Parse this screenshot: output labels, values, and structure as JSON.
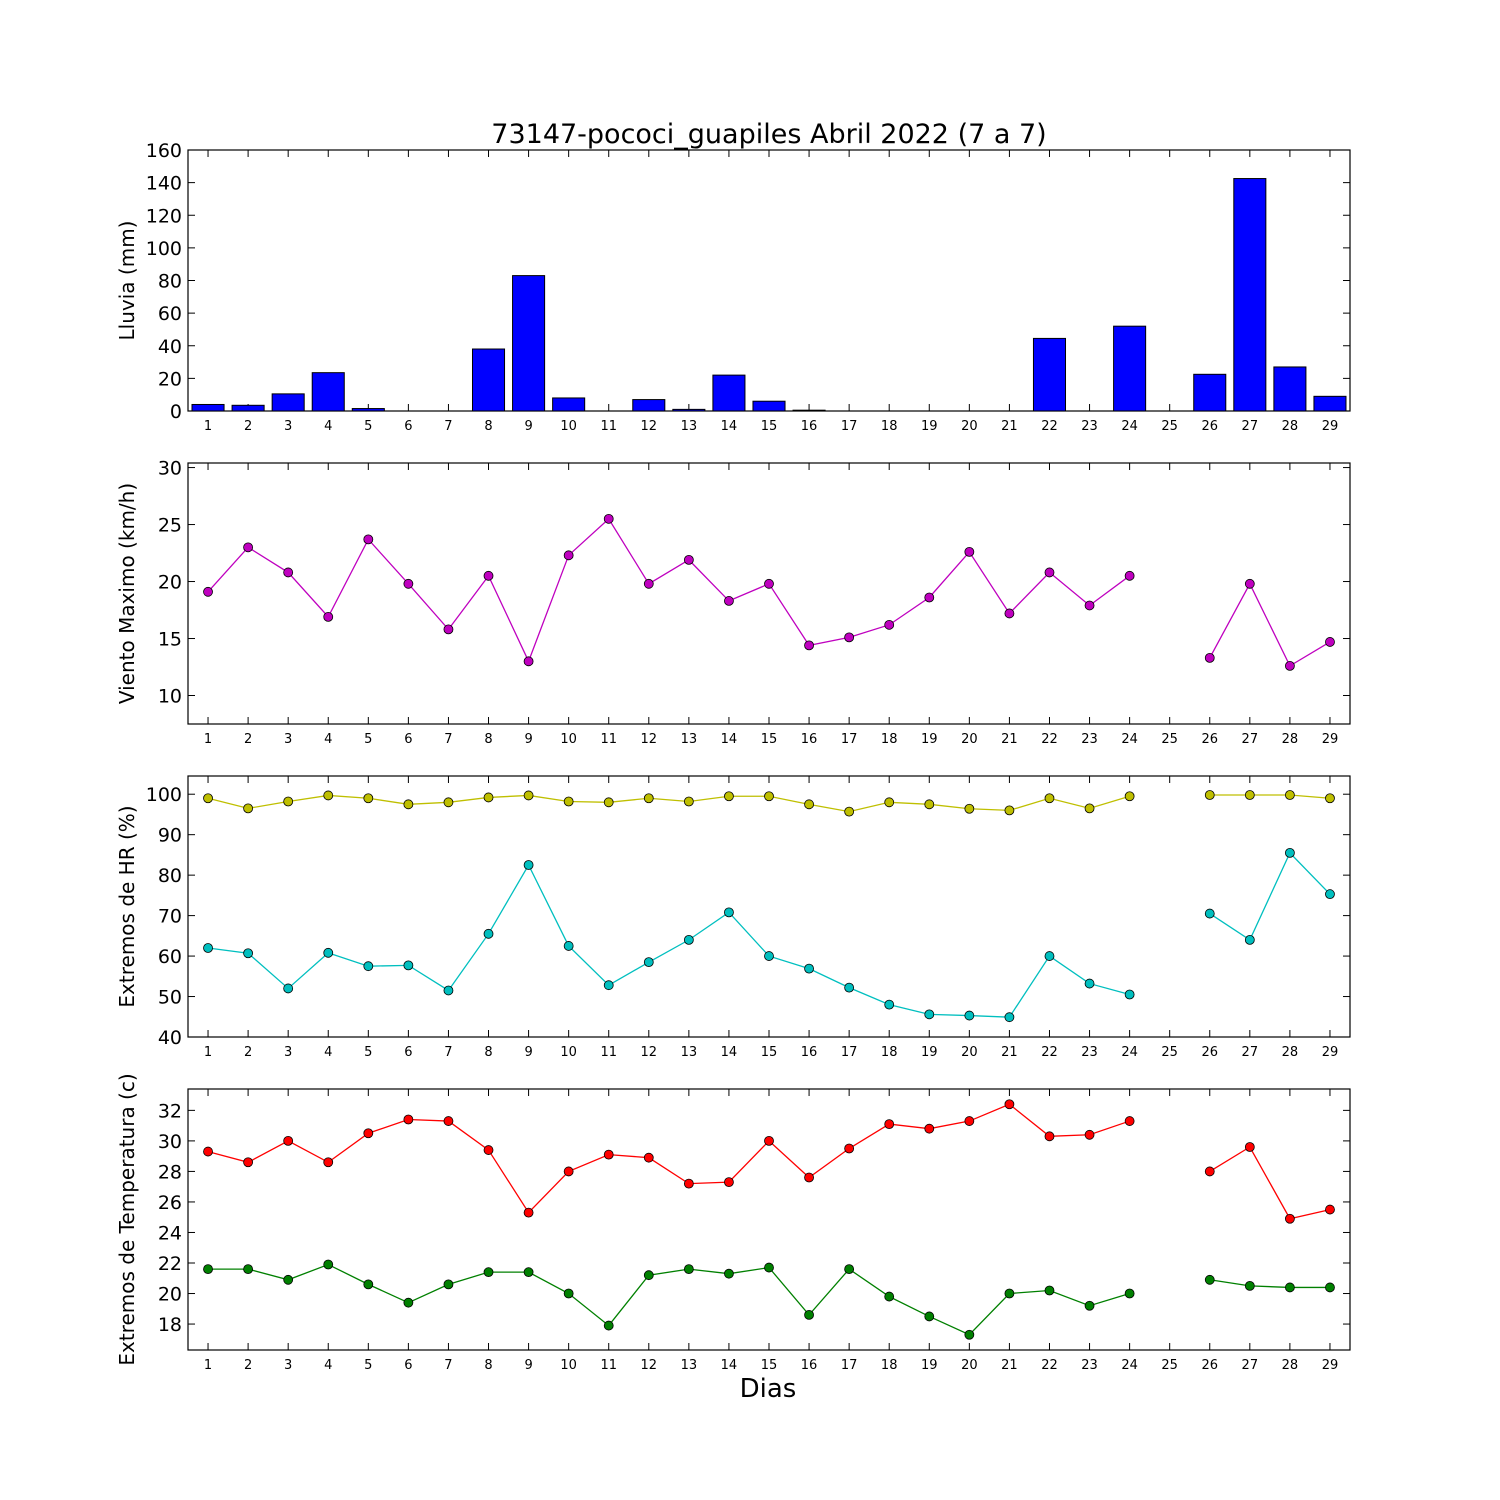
{
  "figure": {
    "title": "73147-pococi_guapiles Abril 2022  (7 a 7)",
    "xlabel": "Dias"
  },
  "chart_data": [
    {
      "type": "bar",
      "ylabel": "Lluvia (mm)",
      "categories": [
        "1",
        "2",
        "3",
        "4",
        "5",
        "6",
        "7",
        "8",
        "9",
        "10",
        "11",
        "12",
        "13",
        "14",
        "15",
        "16",
        "17",
        "18",
        "19",
        "20",
        "21",
        "22",
        "23",
        "24",
        "25",
        "26",
        "27",
        "28",
        "29"
      ],
      "x": [
        1,
        2,
        3,
        4,
        5,
        6,
        7,
        8,
        9,
        10,
        11,
        12,
        13,
        14,
        15,
        16,
        17,
        18,
        19,
        20,
        21,
        22,
        23,
        24,
        25,
        26,
        27,
        28,
        29
      ],
      "ylim": [
        0,
        160
      ],
      "yticks": [
        0,
        20,
        40,
        60,
        80,
        100,
        120,
        140,
        160
      ],
      "series": [
        {
          "color": "#0000ff",
          "values": [
            4,
            3.5,
            10.5,
            23.5,
            1.5,
            0,
            0,
            38,
            83,
            8,
            0,
            7,
            1,
            22,
            6,
            0.5,
            0,
            0,
            0,
            0,
            0,
            44.5,
            0,
            52,
            0,
            22.5,
            142.5,
            27,
            9
          ]
        }
      ],
      "grid": false
    },
    {
      "type": "line",
      "ylabel": "Viento Maximo (km/h)",
      "x": [
        1,
        2,
        3,
        4,
        5,
        6,
        7,
        8,
        9,
        10,
        11,
        12,
        13,
        14,
        15,
        16,
        17,
        18,
        19,
        20,
        21,
        22,
        23,
        24,
        25,
        26,
        27,
        28,
        29
      ],
      "ylim": [
        7.5,
        30.4
      ],
      "yticks": [
        10,
        15,
        20,
        25,
        30
      ],
      "series": [
        {
          "color": "#bf00bf",
          "values": [
            19.1,
            23.0,
            20.8,
            16.9,
            23.7,
            19.8,
            15.8,
            20.5,
            13.0,
            22.3,
            25.5,
            19.8,
            21.9,
            18.3,
            19.8,
            14.4,
            15.1,
            16.2,
            18.6,
            22.6,
            17.2,
            20.8,
            17.9,
            20.5,
            null,
            13.3,
            19.8,
            12.6,
            14.7
          ]
        }
      ],
      "grid": false
    },
    {
      "type": "line",
      "ylabel": "Extremos de HR (%)",
      "x": [
        1,
        2,
        3,
        4,
        5,
        6,
        7,
        8,
        9,
        10,
        11,
        12,
        13,
        14,
        15,
        16,
        17,
        18,
        19,
        20,
        21,
        22,
        23,
        24,
        25,
        26,
        27,
        28,
        29
      ],
      "ylim": [
        40,
        104.5
      ],
      "yticks": [
        40,
        50,
        60,
        70,
        80,
        90,
        100
      ],
      "series": [
        {
          "color": "#bfbf00",
          "values": [
            99,
            96.5,
            98.2,
            99.7,
            99,
            97.5,
            98,
            99.2,
            99.7,
            98.2,
            98,
            99,
            98.2,
            99.5,
            99.5,
            97.5,
            95.7,
            98,
            97.5,
            96.4,
            96,
            99,
            96.5,
            99.5,
            null,
            99.8,
            99.8,
            99.8,
            99
          ]
        },
        {
          "color": "#00bfbf",
          "values": [
            62,
            60.7,
            52,
            60.8,
            57.5,
            57.7,
            51.5,
            65.5,
            82.5,
            62.5,
            52.8,
            58.5,
            64,
            70.8,
            60,
            56.9,
            52.2,
            48,
            45.6,
            45.3,
            44.9,
            60,
            53.2,
            50.5,
            null,
            70.5,
            64,
            85.5,
            75.3
          ]
        }
      ],
      "grid": false
    },
    {
      "type": "line",
      "ylabel": "Extremos de Temperatura (c)",
      "x": [
        1,
        2,
        3,
        4,
        5,
        6,
        7,
        8,
        9,
        10,
        11,
        12,
        13,
        14,
        15,
        16,
        17,
        18,
        19,
        20,
        21,
        22,
        23,
        24,
        25,
        26,
        27,
        28,
        29
      ],
      "ylim": [
        16.3,
        33.4
      ],
      "yticks": [
        18,
        20,
        22,
        24,
        26,
        28,
        30,
        32
      ],
      "series": [
        {
          "color": "#ff0000",
          "values": [
            29.3,
            28.6,
            30.0,
            28.6,
            30.5,
            31.4,
            31.3,
            29.4,
            25.3,
            28.0,
            29.1,
            28.9,
            27.2,
            27.3,
            30.0,
            27.6,
            29.5,
            31.1,
            30.8,
            31.3,
            32.4,
            30.3,
            30.4,
            31.3,
            null,
            28.0,
            29.6,
            24.9,
            25.5
          ]
        },
        {
          "color": "#008000",
          "values": [
            21.6,
            21.6,
            20.9,
            21.9,
            20.6,
            19.4,
            20.6,
            21.4,
            21.4,
            20.0,
            17.9,
            21.2,
            21.6,
            21.3,
            21.7,
            18.6,
            21.6,
            19.8,
            18.5,
            17.3,
            20.0,
            20.2,
            19.2,
            20.0,
            null,
            20.9,
            20.5,
            20.4,
            20.4
          ]
        }
      ],
      "grid": false
    }
  ]
}
